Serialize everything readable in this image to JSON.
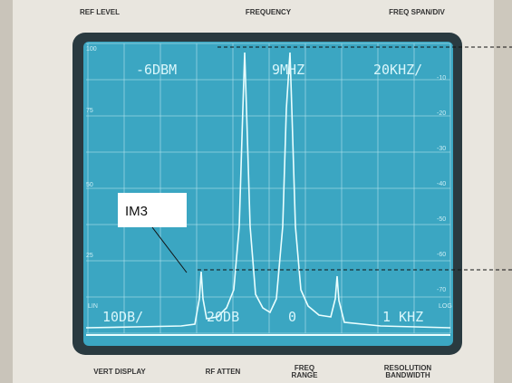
{
  "panel_top": [
    "REF LEVEL",
    "FREQUENCY",
    "FREQ SPAN/DIV"
  ],
  "readout_top": [
    "-6DBM",
    "9MHZ",
    "20KHZ/"
  ],
  "readout_bottom": [
    "10DB/",
    "20DB",
    "0",
    "1 KHZ"
  ],
  "left_scale": [
    "100",
    "75",
    "50",
    "25"
  ],
  "right_scale": [
    "-10",
    "-20",
    "-30",
    "-40",
    "-50",
    "-60",
    "-70"
  ],
  "side_labels": [
    "LIN",
    "LOG"
  ],
  "annotation": "IM3",
  "panel_bottom": [
    {
      "lines": [
        "VERT DISPLAY"
      ]
    },
    {
      "lines": [
        "RF ATTEN"
      ]
    },
    {
      "lines": [
        "FREQ",
        "RANGE"
      ]
    },
    {
      "lines": [
        "RESOLUTION",
        "BANDWIDTH"
      ]
    }
  ]
}
